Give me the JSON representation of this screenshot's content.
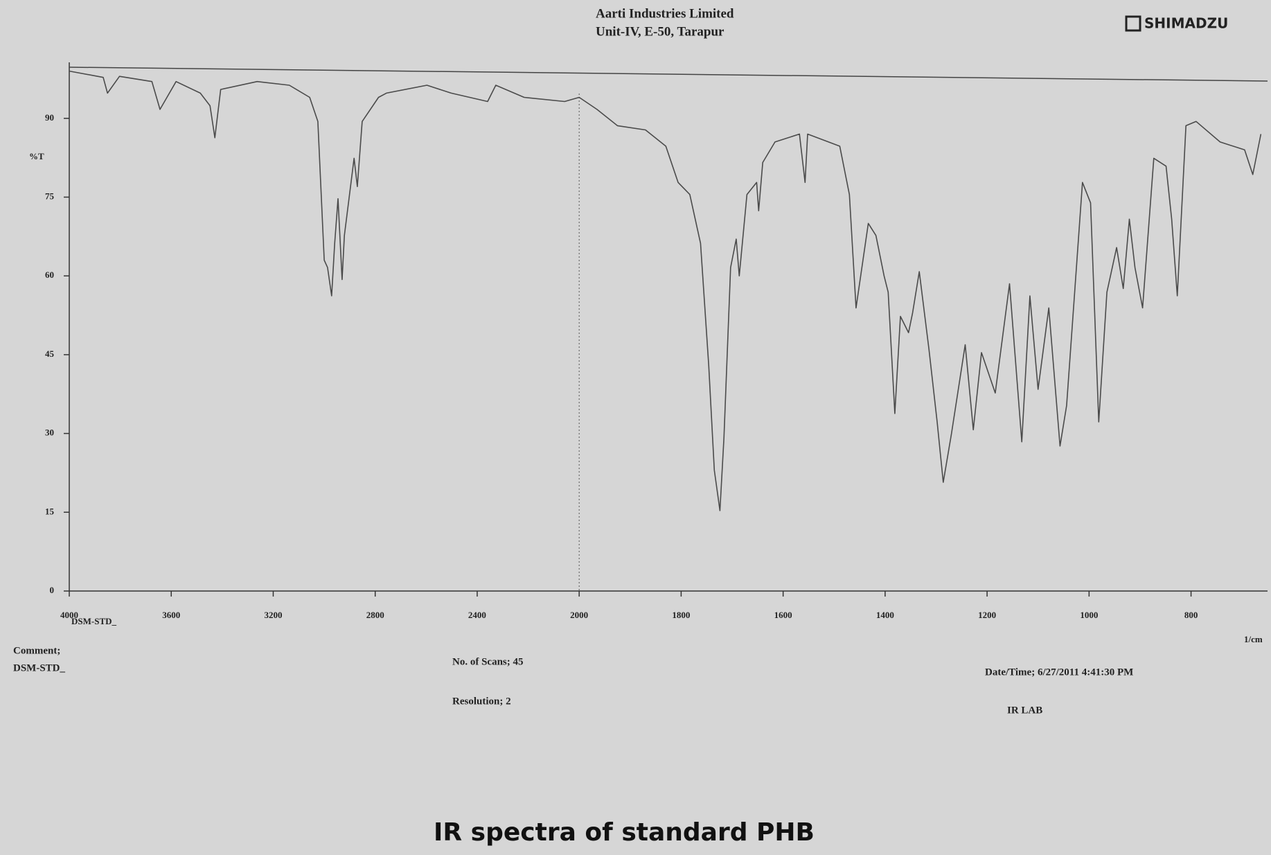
{
  "chart_data": {
    "type": "line",
    "title": "IR spectra of standard PHB",
    "header": [
      "Aarti Industries Limited",
      "Unit-IV, E-50, Tarapur"
    ],
    "brand": "SHIMADZU",
    "ylabel": "%T",
    "xlabel": "1/cm",
    "sample": "DSM-STD_",
    "annotations": [
      "Comment;",
      "DSM-STD_",
      "No. of Scans; 45",
      "Resolution; 2",
      "Date/Time; 6/27/2011 4:41:30 PM",
      "IR LAB"
    ],
    "color": "#4a4a4a",
    "x": [
      4000,
      3867,
      3850,
      3803,
      3676,
      3644,
      3581,
      3486,
      3448,
      3429,
      3406,
      3263,
      3137,
      3057,
      3025,
      3000,
      2987,
      2971,
      2959,
      2946,
      2930,
      2921,
      2883,
      2870,
      2851,
      2787,
      2756,
      2597,
      2502,
      2359,
      2327,
      2216,
      2057,
      2000,
      1965,
      1925,
      1870,
      1830,
      1806,
      1783,
      1762,
      1746,
      1735,
      1724,
      1716,
      1703,
      1692,
      1686,
      1671,
      1652,
      1648,
      1640,
      1616,
      1568,
      1557,
      1552,
      1489,
      1470,
      1457,
      1433,
      1418,
      1402,
      1394,
      1381,
      1370,
      1354,
      1346,
      1333,
      1314,
      1298,
      1286,
      1270,
      1243,
      1227,
      1211,
      1184,
      1156,
      1132,
      1116,
      1100,
      1079,
      1057,
      1044,
      1013,
      997,
      981,
      965,
      946,
      933,
      921,
      910,
      895,
      873,
      849,
      838,
      827,
      810,
      790,
      743,
      695,
      679,
      663
    ],
    "values": [
      99,
      97.8,
      94.8,
      98,
      97,
      91.7,
      97,
      94.8,
      92.4,
      86.3,
      95.5,
      97,
      96.3,
      94,
      89.4,
      63,
      61.6,
      56.2,
      66.2,
      74.7,
      59.3,
      67.7,
      82.4,
      77,
      89.4,
      94,
      94.8,
      96.3,
      94.8,
      93.2,
      96.3,
      94,
      93.2,
      94,
      91.7,
      88.6,
      87.8,
      84.7,
      77.8,
      75.5,
      66.2,
      43,
      23,
      15.3,
      29.2,
      61.6,
      67,
      60,
      75.5,
      77.8,
      72.4,
      81.6,
      85.5,
      87,
      77.8,
      87,
      84.7,
      75.5,
      53.9,
      70,
      67.7,
      60,
      56.9,
      33.8,
      52.3,
      49.2,
      53,
      60.8,
      46,
      32.2,
      20.7,
      29.9,
      46.9,
      30.7,
      45.4,
      37.7,
      58.5,
      28.4,
      56.2,
      38.4,
      53.9,
      27.6,
      35.3,
      77.8,
      73.9,
      32.2,
      56.9,
      65.4,
      57.6,
      70.8,
      61.6,
      53.9,
      82.4,
      80.9,
      70.8,
      56.2,
      88.6,
      89.4,
      85.5,
      84,
      79.3,
      87
    ],
    "xlim": [
      4000,
      650
    ],
    "ylim": [
      0,
      100
    ],
    "xticks": [
      4000,
      3600,
      3200,
      2800,
      2400,
      2000,
      1800,
      1600,
      1400,
      1200,
      1000,
      800
    ],
    "yticks": [
      0,
      15,
      30,
      45,
      60,
      75,
      90
    ],
    "x_break": 2000,
    "x_break_expansion": 2,
    "grid": false
  }
}
